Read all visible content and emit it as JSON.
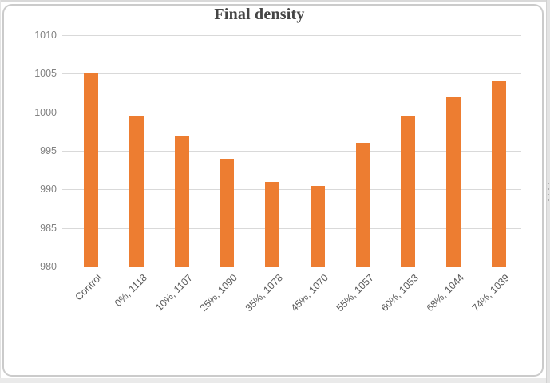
{
  "chart_data": {
    "type": "bar",
    "title": "Final density",
    "categories": [
      "Control",
      "0%, 1118",
      "10%, 1107",
      "25%, 1090",
      "35%, 1078",
      "45%, 1070",
      "55%, 1057",
      "60%, 1053",
      "68%, 1044",
      "74%, 1039"
    ],
    "values": [
      1005,
      999.5,
      997,
      994,
      991,
      990.5,
      996,
      999.5,
      1002,
      1004
    ],
    "xlabel": "",
    "ylabel": "",
    "ylim": [
      980,
      1010
    ],
    "yticks": [
      1010,
      1005,
      1000,
      995,
      990,
      985,
      980
    ],
    "grid": true,
    "legend_position": "none",
    "bar_color": "#ED7D31",
    "gridline_color": "#D9D9D9",
    "baseline_color": "#D0D0D0",
    "axis_tick_color": "#828282",
    "category_label_color": "#595959",
    "title_color": "#454545"
  }
}
